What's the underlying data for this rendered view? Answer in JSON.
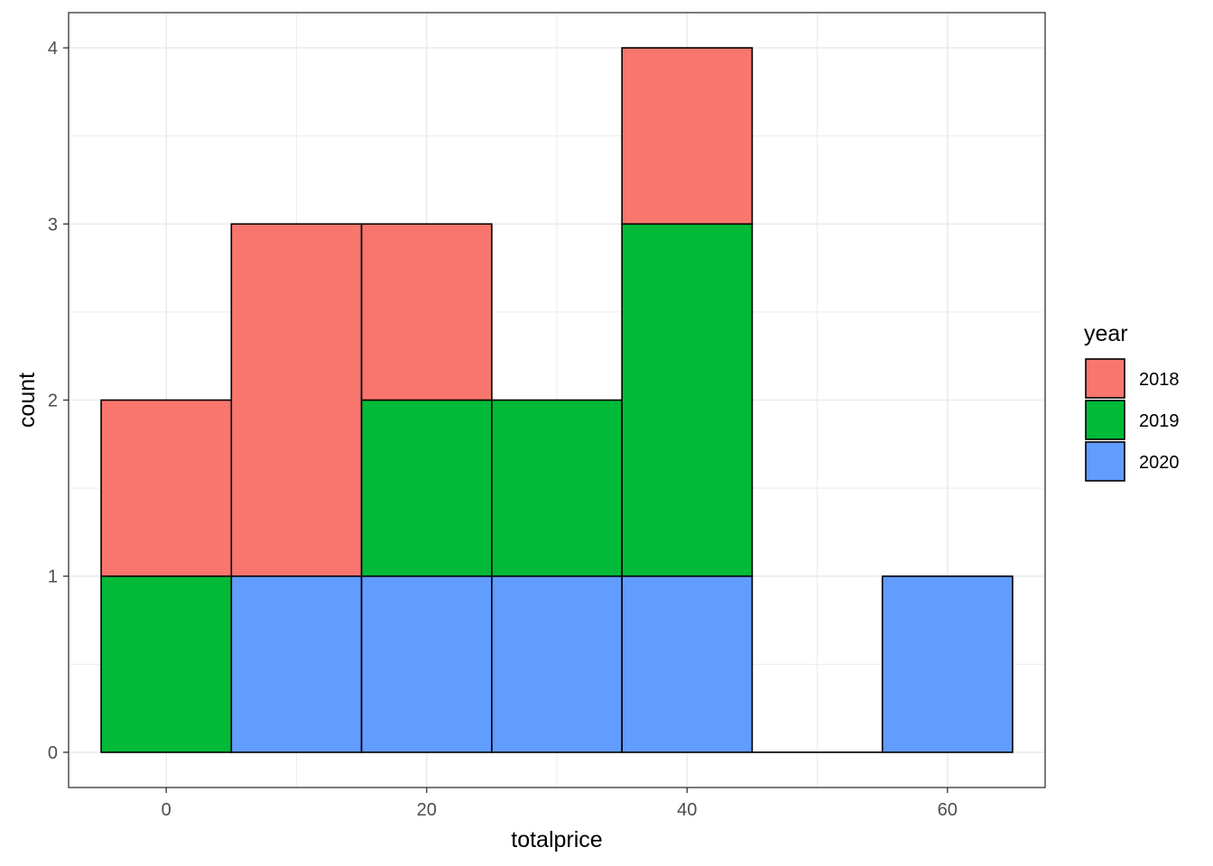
{
  "chart_data": {
    "type": "bar",
    "subtype": "stacked-histogram",
    "title": "",
    "xlabel": "totalprice",
    "ylabel": "count",
    "bin_width": 10,
    "bin_centers": [
      0,
      10,
      20,
      30,
      40,
      50,
      60
    ],
    "x_ticks": [
      "0",
      "20",
      "40",
      "60"
    ],
    "y_ticks": [
      "0",
      "1",
      "2",
      "3",
      "4"
    ],
    "xlim": [
      -7.5,
      67.5
    ],
    "ylim": [
      -0.2,
      4.2
    ],
    "grid": true,
    "legend": {
      "title": "year",
      "position": "right"
    },
    "series": [
      {
        "name": "2018",
        "color": "#F8766D",
        "values": [
          1,
          2,
          1,
          0,
          1,
          0,
          0
        ]
      },
      {
        "name": "2019",
        "color": "#00BA38",
        "values": [
          1,
          0,
          1,
          1,
          2,
          0,
          0
        ]
      },
      {
        "name": "2020",
        "color": "#619CFF",
        "values": [
          0,
          1,
          1,
          1,
          1,
          0,
          1
        ]
      }
    ],
    "stack_order_bottom_to_top": [
      "2020",
      "2019",
      "2018"
    ]
  }
}
